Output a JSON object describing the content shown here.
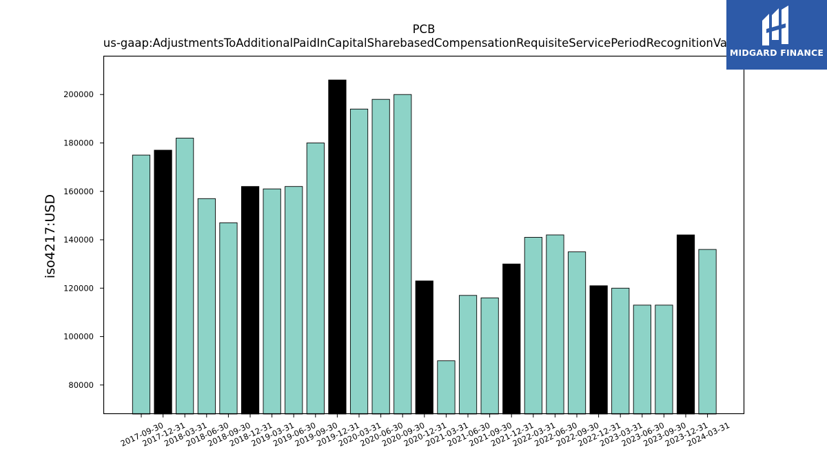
{
  "chart_data": {
    "type": "bar",
    "title": "PCB",
    "subtitle": "us-gaap:AdjustmentsToAdditionalPaidInCapitalSharebasedCompensationRequisiteServicePeriodRecognitionValue",
    "xlabel": "",
    "ylabel": "iso4217:USD",
    "ylim": [
      68000,
      216000
    ],
    "yticks": [
      80000,
      100000,
      120000,
      140000,
      160000,
      180000,
      200000
    ],
    "grid": false,
    "categories": [
      "2017-09-30",
      "2017-12-31",
      "2018-03-31",
      "2018-06-30",
      "2018-09-30",
      "2018-12-31",
      "2019-03-31",
      "2019-06-30",
      "2019-09-30",
      "2019-12-31",
      "2020-03-31",
      "2020-06-30",
      "2020-09-30",
      "2020-12-31",
      "2021-03-31",
      "2021-06-30",
      "2021-09-30",
      "2021-12-31",
      "2022-03-31",
      "2022-06-30",
      "2022-09-30",
      "2022-12-31",
      "2023-03-31",
      "2023-06-30",
      "2023-09-30",
      "2023-12-31",
      "2024-03-31"
    ],
    "values": [
      175000,
      177000,
      182000,
      157000,
      147000,
      162000,
      161000,
      162000,
      180000,
      206000,
      194000,
      198000,
      200000,
      123000,
      90000,
      117000,
      116000,
      130000,
      141000,
      142000,
      135000,
      121000,
      120000,
      113000,
      113000,
      142000,
      136000
    ],
    "bar_colors": [
      "#8dd3c7",
      "#000000",
      "#8dd3c7",
      "#8dd3c7",
      "#8dd3c7",
      "#000000",
      "#8dd3c7",
      "#8dd3c7",
      "#8dd3c7",
      "#000000",
      "#8dd3c7",
      "#8dd3c7",
      "#8dd3c7",
      "#000000",
      "#8dd3c7",
      "#8dd3c7",
      "#8dd3c7",
      "#000000",
      "#8dd3c7",
      "#8dd3c7",
      "#8dd3c7",
      "#000000",
      "#8dd3c7",
      "#8dd3c7",
      "#8dd3c7",
      "#000000",
      "#8dd3c7"
    ],
    "bar_edge_color": "#000000"
  },
  "logo": {
    "text": "MIDGARD FINANCE",
    "background": "#2d5aa8",
    "icon": "midgard-logo-icon"
  }
}
